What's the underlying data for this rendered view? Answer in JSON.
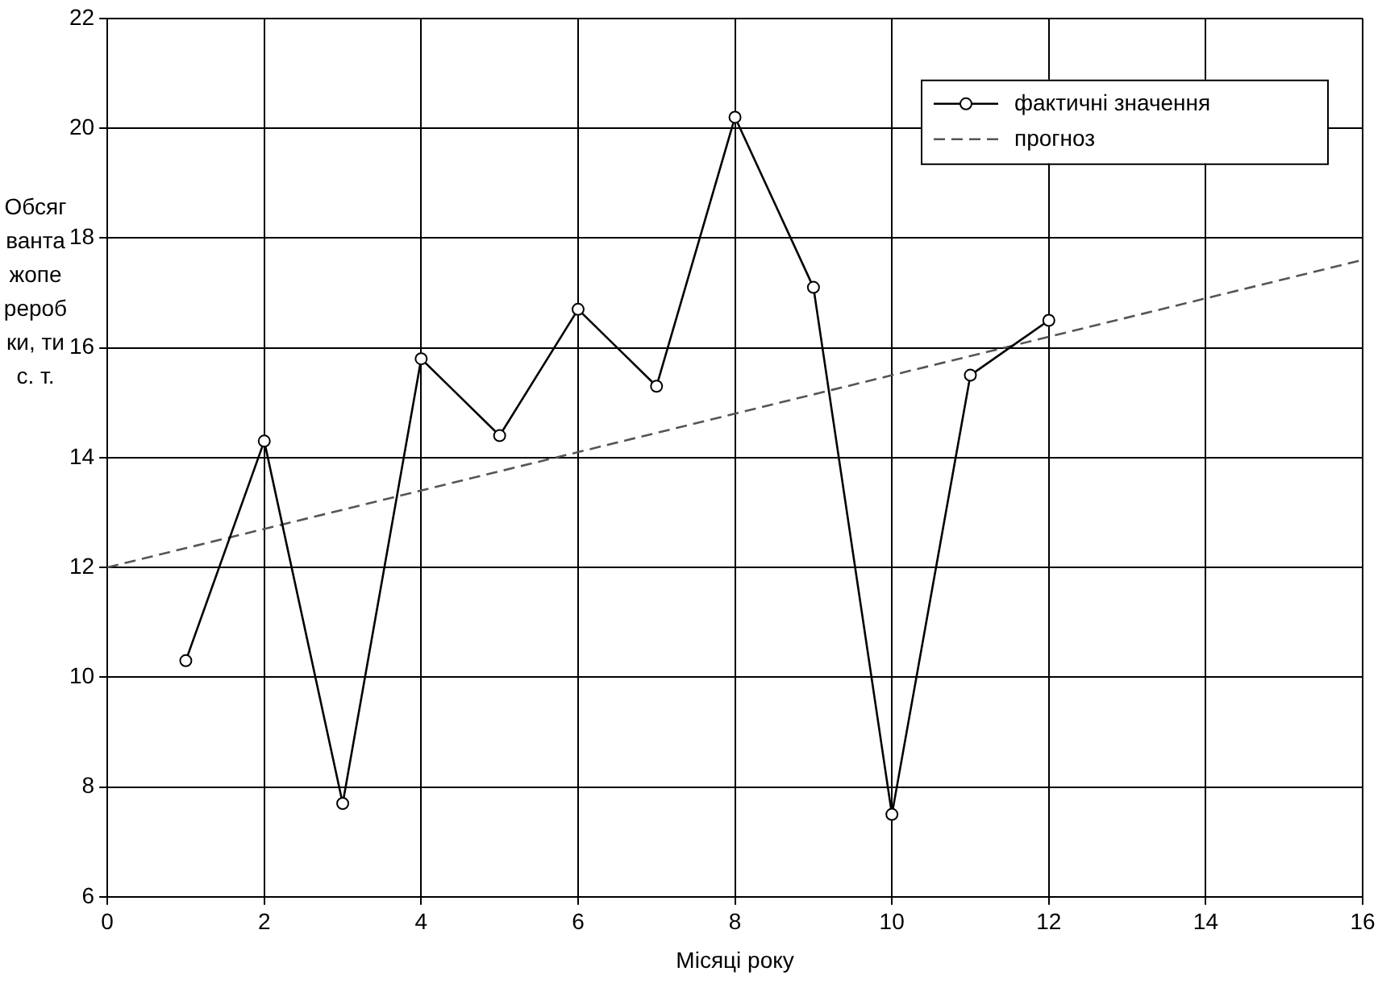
{
  "chart_data": {
    "type": "line",
    "xlabel": "Місяці року",
    "ylabel": "Обсяг вантажопереробки, тис. т.",
    "xlim": [
      0,
      16
    ],
    "xticks": [
      0,
      2,
      4,
      6,
      8,
      10,
      12,
      14,
      16
    ],
    "ylim": [
      6,
      22
    ],
    "yticks": [
      6,
      8,
      10,
      12,
      14,
      16,
      18,
      20,
      22
    ],
    "grid": true,
    "legend": "top right",
    "series": [
      {
        "name": "фактичні значення",
        "color": "#000000",
        "marker": "circle",
        "line_style": "solid",
        "x": [
          1,
          2,
          3,
          4,
          5,
          6,
          7,
          8,
          9,
          10,
          11,
          12
        ],
        "values": [
          10.3,
          14.3,
          7.7,
          15.8,
          14.4,
          16.7,
          15.3,
          20.2,
          17.1,
          7.5,
          15.5,
          16.5
        ]
      },
      {
        "name": "прогноз",
        "color": "#555555",
        "marker": "none",
        "line_style": "dashed",
        "x": [
          0,
          16
        ],
        "values": [
          12,
          17.6
        ]
      }
    ]
  }
}
